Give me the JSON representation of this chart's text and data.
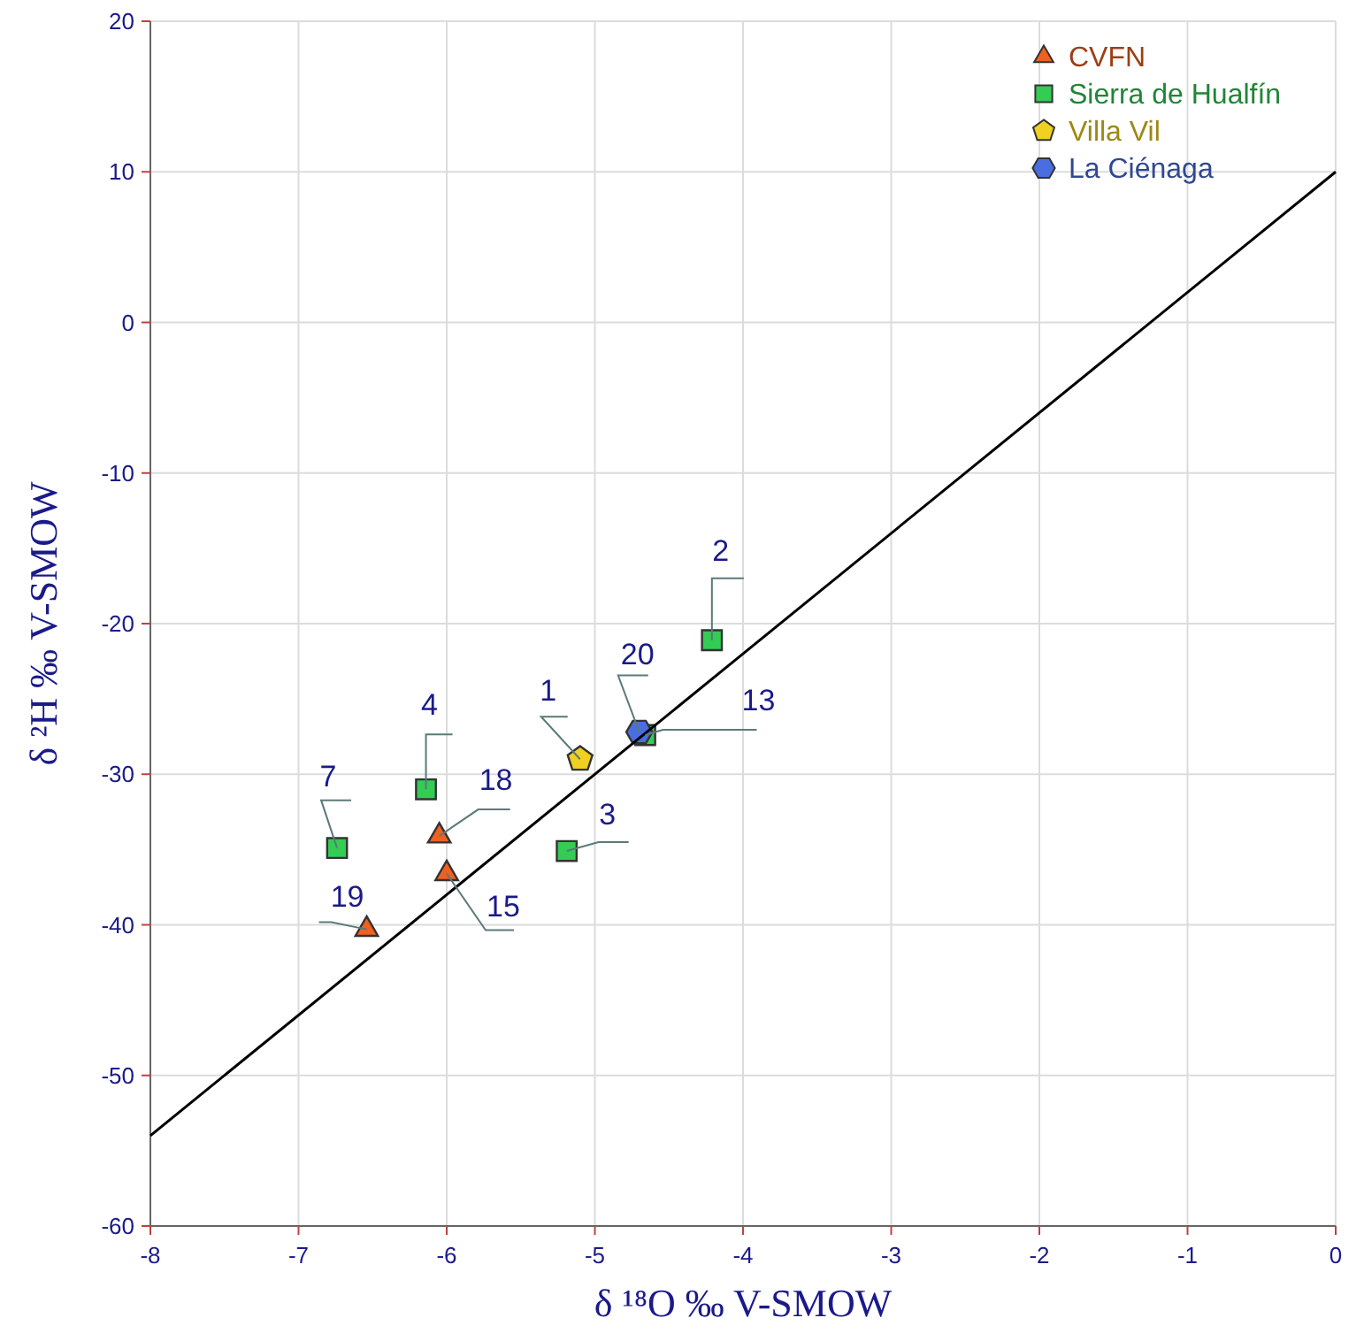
{
  "chart_data": {
    "type": "scatter",
    "xlabel": "δ ¹⁸O ‰ V-SMOW",
    "ylabel": "δ ²H ‰ V-SMOW",
    "xlim": [
      -8,
      0
    ],
    "ylim": [
      -60,
      20
    ],
    "xticks": [
      -8,
      -7,
      -6,
      -5,
      -4,
      -3,
      -2,
      -1,
      0
    ],
    "yticks": [
      -60,
      -50,
      -40,
      -30,
      -20,
      -10,
      0,
      10,
      20
    ],
    "grid": true,
    "legend": "top right",
    "series": [
      {
        "name": "CVFN",
        "color": "#f06020",
        "marker": "triangle",
        "x": [
          -6.05,
          -6.0,
          -6.54
        ],
        "values": [
          -34.1,
          -36.6,
          -40.3
        ]
      },
      {
        "name": "Sierra de Hualfín",
        "color": "#33cc55",
        "marker": "square",
        "x": [
          -4.21,
          -4.66,
          -6.14,
          -6.74,
          -5.19
        ],
        "values": [
          -21.1,
          -27.4,
          -31.0,
          -34.9,
          -35.1
        ]
      },
      {
        "name": "Villa Vil",
        "color": "#f0d020",
        "x": [
          -5.1
        ],
        "values": [
          -29.0
        ]
      },
      {
        "name": "La Ciénaga",
        "color": "#4a6ee0",
        "x": [
          -4.7
        ],
        "values": [
          -27.2
        ]
      },
      {
        "type": "line",
        "color": "#000000",
        "marker": "none",
        "x": [
          -8,
          0
        ],
        "values": [
          -54,
          10
        ]
      }
    ],
    "annotations": [
      {
        "text": "1",
        "x": -5.1,
        "y": -29.0
      },
      {
        "text": "2",
        "x": -4.21,
        "y": -21.1
      },
      {
        "text": "3",
        "x": -5.19,
        "y": -35.1
      },
      {
        "text": "4",
        "x": -6.14,
        "y": -31.0
      },
      {
        "text": "7",
        "x": -6.74,
        "y": -34.9
      },
      {
        "text": "13",
        "x": -4.66,
        "y": -27.4
      },
      {
        "text": "15",
        "x": -6.0,
        "y": -36.6
      },
      {
        "text": "18",
        "x": -6.05,
        "y": -34.1
      },
      {
        "text": "19",
        "x": -6.54,
        "y": -40.3
      },
      {
        "text": "20",
        "x": -4.7,
        "y": -27.2
      }
    ]
  }
}
